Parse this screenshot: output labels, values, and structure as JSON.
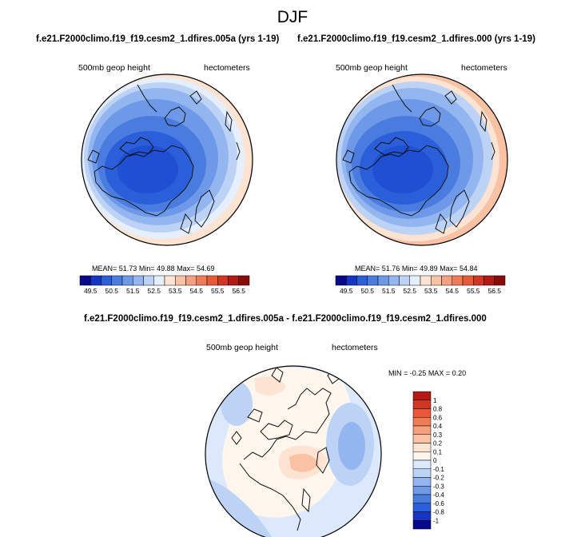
{
  "figure": {
    "title": "DJF"
  },
  "chart_data": [
    {
      "type": "heatmap",
      "projection": "north polar stereographic",
      "title": "f.e21.F2000climo.f19_f19.cesm2_1.dfires.005a (yrs 1-19)",
      "left_label": "500mb geop height",
      "right_label": "hectometers",
      "stats": {
        "mean_label": "MEAN=",
        "mean": "51.73",
        "min_label": "Min=",
        "min": "49.88",
        "max_label": "Max=",
        "max": "54.69"
      },
      "colorbar_ticks": [
        "49.5",
        "50.5",
        "51.5",
        "52.5",
        "53.5",
        "54.5",
        "55.5",
        "56.5"
      ],
      "colorbar_colors": [
        "#08088a",
        "#1535c4",
        "#2b5ed9",
        "#4a7ce0",
        "#6d99e8",
        "#94b6f0",
        "#bdd3f6",
        "#e5efff",
        "#fde3d2",
        "#f9c2a4",
        "#f5a07e",
        "#f07c56",
        "#e65a38",
        "#d13623",
        "#b41a14",
        "#8a0a0a"
      ]
    },
    {
      "type": "heatmap",
      "projection": "north polar stereographic",
      "title": "f.e21.F2000climo.f19_f19.cesm2_1.dfires.000 (yrs 1-19)",
      "left_label": "500mb geop height",
      "right_label": "hectometers",
      "stats": {
        "mean_label": "MEAN=",
        "mean": "51.76",
        "min_label": "Min=",
        "min": "49.89",
        "max_label": "Max=",
        "max": "54.84"
      },
      "colorbar_ticks": [
        "49.5",
        "50.5",
        "51.5",
        "52.5",
        "53.5",
        "54.5",
        "55.5",
        "56.5"
      ],
      "colorbar_colors": [
        "#08088a",
        "#1535c4",
        "#2b5ed9",
        "#4a7ce0",
        "#6d99e8",
        "#94b6f0",
        "#bdd3f6",
        "#e5efff",
        "#fde3d2",
        "#f9c2a4",
        "#f5a07e",
        "#f07c56",
        "#e65a38",
        "#d13623",
        "#b41a14",
        "#8a0a0a"
      ]
    },
    {
      "type": "heatmap",
      "projection": "north polar stereographic",
      "title": "f.e21.F2000climo.f19_f19.cesm2_1.dfires.005a - f.e21.F2000climo.f19_f19.cesm2_1.dfires.000",
      "left_label": "500mb geop height",
      "right_label": "hectometers",
      "stats": {
        "min_label": "MIN =",
        "min": "-0.25",
        "max_label": "MAX =",
        "max": "0.20"
      },
      "colorbar_ticks": [
        "1",
        "0.8",
        "0.6",
        "0.4",
        "0.3",
        "0.2",
        "0.1",
        "0",
        "-0.1",
        "-0.2",
        "-0.3",
        "-0.4",
        "-0.6",
        "-0.8",
        "-1"
      ],
      "colorbar_colors": [
        "#b41a14",
        "#d13623",
        "#e65a38",
        "#f07c56",
        "#f5a07e",
        "#f9c2a4",
        "#fde3d2",
        "#fff6ee",
        "#dce8fb",
        "#bdd3f6",
        "#94b6f0",
        "#6d99e8",
        "#4a7ce0",
        "#2b5ed9",
        "#1535c4",
        "#08088a"
      ]
    }
  ]
}
